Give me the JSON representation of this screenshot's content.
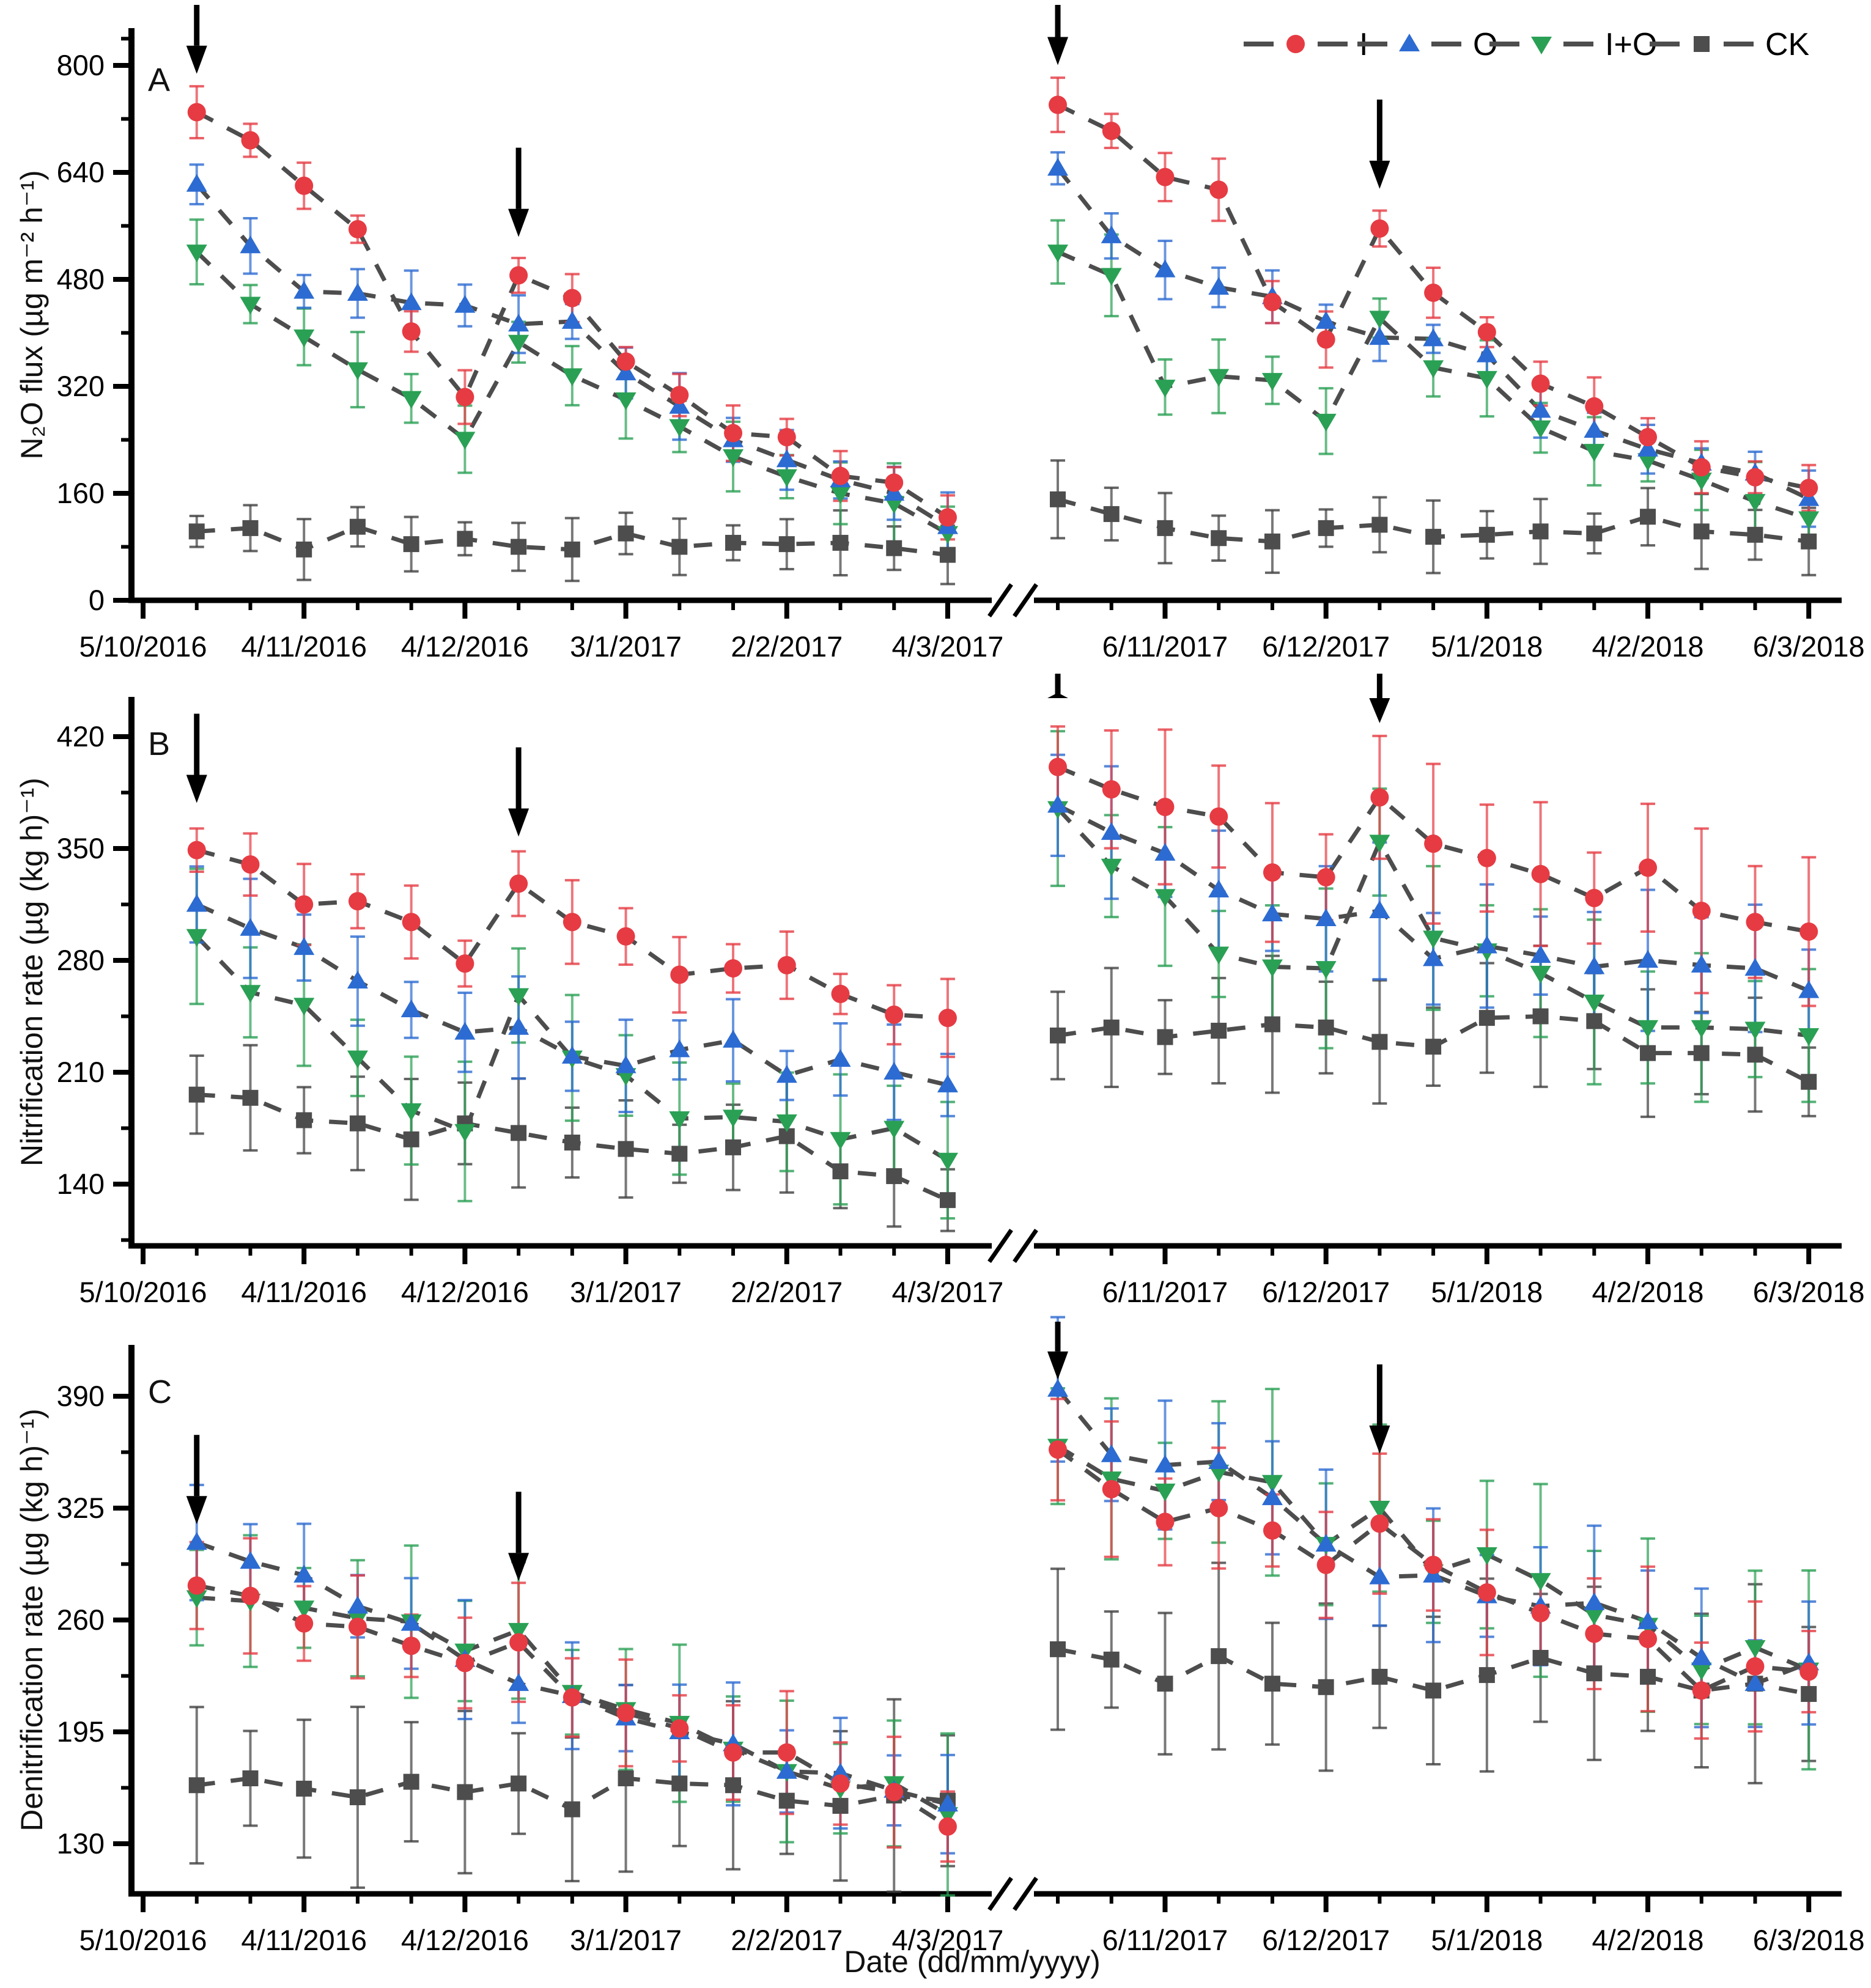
{
  "chart_data": {
    "type": "line",
    "xlabel": "Date (dd/mm/yyyy)",
    "x_axis_break": true,
    "x_left_tick_labels": [
      "5/10/2016",
      "4/11/2016",
      "4/12/2016",
      "3/1/2017",
      "2/2/2017",
      "4/3/2017"
    ],
    "x_right_tick_labels": [
      "6/11/2017",
      "6/12/2017",
      "5/1/2018",
      "4/2/2018",
      "6/3/2018"
    ],
    "legend_position": "top-right",
    "legend": [
      {
        "label": "I",
        "marker": "circle",
        "color": "#e63b43"
      },
      {
        "label": "O",
        "marker": "triangle-up",
        "color": "#2c6bd2"
      },
      {
        "label": "I+O",
        "marker": "triangle-down",
        "color": "#2aa054"
      },
      {
        "label": "CK",
        "marker": "square",
        "color": "#4d4d4d"
      }
    ],
    "dash_color": "#4d4d4d",
    "arrow_annotation": "black down-arrows mark fertilization events at points 1 and 7 of each segment",
    "panels": [
      {
        "label": "A",
        "ylabel": "N₂O flux (µg m⁻² h⁻¹)",
        "yticks": [
          0,
          160,
          320,
          480,
          640,
          800
        ],
        "ylim": [
          0,
          855
        ],
        "arrows_left": [
          0,
          6
        ],
        "arrows_right": [
          0,
          6
        ],
        "series_left": [
          {
            "name": "I",
            "values": [
              730,
              688,
              620,
              555,
              402,
              304,
              486,
              452,
              357,
              307,
              250,
              244,
              186,
              176,
              124
            ]
          },
          {
            "name": "O",
            "values": [
              622,
              530,
              462,
              459,
              445,
              441,
              413,
              417,
              340,
              290,
              240,
              210,
              180,
              160,
              110
            ]
          },
          {
            "name": "I+O",
            "values": [
              521,
              443,
              394,
              345,
              302,
              241,
              386,
              336,
              300,
              260,
              215,
              185,
              160,
              145,
              100
            ]
          },
          {
            "name": "CK",
            "values": [
              103,
              108,
              76,
              110,
              84,
              92,
              80,
              76,
              100,
              80,
              86,
              84,
              86,
              78,
              68
            ]
          }
        ],
        "series_right": [
          {
            "name": "I",
            "values": [
              741,
              702,
              633,
              614,
              446,
              390,
              556,
              460,
              401,
              324,
              290,
              244,
              199,
              184,
              168
            ]
          },
          {
            "name": "O",
            "values": [
              646,
              545,
              494,
              468,
              454,
              417,
              393,
              391,
              367,
              284,
              254,
              226,
              205,
              190,
              152
            ]
          },
          {
            "name": "I+O",
            "values": [
              521,
              486,
              319,
              335,
              329,
              268,
              422,
              348,
              332,
              258,
              223,
              209,
              180,
              148,
              122
            ]
          },
          {
            "name": "CK",
            "values": [
              151,
              129,
              108,
              93,
              88,
              108,
              113,
              95,
              98,
              103,
              100,
              125,
              103,
              98,
              88
            ]
          }
        ],
        "error_half_left": {
          "I": 30,
          "O": 36,
          "I+O": 42,
          "CK": 34
        },
        "error_half_right": {
          "I": 32,
          "O": 30,
          "I+O": 42,
          "CK": 40
        }
      },
      {
        "label": "B",
        "ylabel": "Nitrification rate (µg (kg h)⁻¹)",
        "yticks": [
          140,
          210,
          280,
          350,
          420
        ],
        "ylim": [
          101,
          445
        ],
        "arrows_left": [
          0,
          6
        ],
        "arrows_right": [
          0,
          6
        ],
        "series_left": [
          {
            "name": "I",
            "values": [
              349,
              340,
              315,
              317,
              304,
              278,
              328,
              304,
              295,
              271,
              275,
              277,
              259,
              246,
              244
            ]
          },
          {
            "name": "O",
            "values": [
              315,
              300,
              288,
              267,
              249,
              235,
              238,
              220,
              214,
              224,
              230,
              208,
              218,
              210,
              202
            ]
          },
          {
            "name": "I+O",
            "values": [
              295,
              260,
              252,
              219,
              186,
              173,
              258,
              219,
              208,
              181,
              182,
              179,
              168,
              175,
              155
            ]
          },
          {
            "name": "CK",
            "values": [
              196,
              194,
              180,
              178,
              168,
              178,
              172,
              166,
              162,
              159,
              163,
              170,
              148,
              145,
              130
            ]
          }
        ],
        "series_right": [
          {
            "name": "I",
            "values": [
              401,
              387,
              376,
              370,
              335,
              332,
              382,
              353,
              344,
              334,
              319,
              338,
              311,
              304,
              298
            ]
          },
          {
            "name": "O",
            "values": [
              377,
              360,
              347,
              324,
              309,
              306,
              311,
              281,
              289,
              283,
              276,
              280,
              277,
              275,
              261
            ]
          },
          {
            "name": "I+O",
            "values": [
              375,
              339,
              320,
              284,
              276,
              275,
              354,
              294,
              286,
              272,
              254,
              238,
              238,
              237,
              233
            ]
          },
          {
            "name": "CK",
            "values": [
              233,
              238,
              232,
              236,
              240,
              238,
              229,
              226,
              244,
              245,
              242,
              222,
              222,
              221,
              204
            ]
          }
        ],
        "error_half_left": {
          "I": 18,
          "O": 22,
          "I+O": 30,
          "CK": 26
        },
        "error_half_right": {
          "I": 35,
          "O": 30,
          "I+O": 35,
          "CK": 30
        }
      },
      {
        "label": "C",
        "ylabel": "Denitrification rate (µg (kg h)⁻¹)",
        "yticks": [
          130,
          195,
          260,
          325,
          390
        ],
        "ylim": [
          101,
          420
        ],
        "arrows_left": [
          0,
          6
        ],
        "arrows_right": [
          0,
          6
        ],
        "series_left": [
          {
            "name": "I",
            "values": [
              280,
              274,
              258,
              256,
              245,
              235,
              247,
              215,
              206,
              197,
              183,
              183,
              165,
              160,
              140
            ]
          },
          {
            "name": "O",
            "values": [
              305,
              294,
              286,
              268,
              258,
              237,
              223,
              216,
              203,
              195,
              188,
              172,
              171,
              161,
              153
            ]
          },
          {
            "name": "I+O",
            "values": [
              273,
              271,
              267,
              261,
              259,
              242,
              254,
              218,
              208,
              200,
              185,
              172,
              162,
              165,
              147
            ]
          },
          {
            "name": "CK",
            "values": [
              164,
              168,
              162,
              157,
              166,
              160,
              165,
              150,
              168,
              165,
              164,
              155,
              152,
              158,
              155
            ]
          }
        ],
        "series_right": [
          {
            "name": "I",
            "values": [
              359,
              336,
              317,
              325,
              312,
              292,
              316,
              292,
              276,
              264,
              252,
              249,
              219,
              233,
              230
            ]
          },
          {
            "name": "O",
            "values": [
              394,
              356,
              350,
              352,
              331,
              304,
              285,
              286,
              274,
              268,
              270,
              259,
              238,
              223,
              235
            ]
          },
          {
            "name": "I+O",
            "values": [
              361,
              342,
              335,
              346,
              340,
              304,
              325,
              288,
              298,
              283,
              263,
              257,
              231,
              244,
              231
            ]
          },
          {
            "name": "CK",
            "values": [
              243,
              237,
              223,
              239,
              223,
              221,
              227,
              219,
              228,
              238,
              229,
              227,
              219,
              223,
              217
            ]
          }
        ],
        "error_half_left": {
          "I": 25,
          "O": 25,
          "I+O": 32,
          "CK": 38
        },
        "error_half_right": {
          "I": 30,
          "O": 32,
          "I+O": 40,
          "CK": 40
        }
      }
    ]
  }
}
